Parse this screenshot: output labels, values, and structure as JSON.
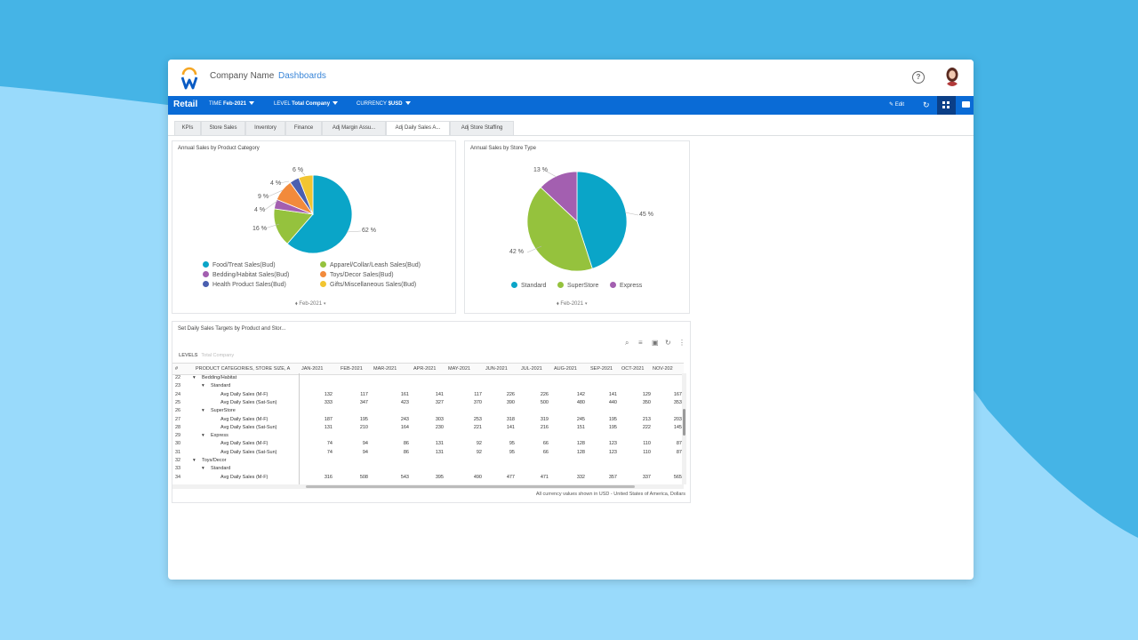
{
  "header": {
    "company_name": "Company Name",
    "dashboards_link": "Dashboards",
    "help_icon": "?"
  },
  "toolbar": {
    "brand": "Retail",
    "filters": [
      {
        "key": "TIME",
        "value": "Feb-2021"
      },
      {
        "key": "LEVEL",
        "value": "Total Company"
      },
      {
        "key": "CURRENCY",
        "value": "$USD"
      }
    ],
    "edit_label": "Edit"
  },
  "tabs": [
    "KPIs",
    "Store Sales",
    "Inventory",
    "Finance",
    "Adj Margin Assu...",
    "Adj Daily Sales A...",
    "Adj Store Staffing"
  ],
  "active_tab": 5,
  "charts": {
    "product": {
      "title": "Annual Sales by Product Category",
      "period": "Feb-2021",
      "legend_left": [
        "Food/Treat Sales(Bud)",
        "Bedding/Habitat Sales(Bud)",
        "Health Product Sales(Bud)"
      ],
      "legend_right": [
        "Apparel/Collar/Leash Sales(Bud)",
        "Toys/Decor Sales(Bud)",
        "Gifts/Miscellaneous Sales(Bud)"
      ],
      "labels": [
        "62 %",
        "16 %",
        "4 %",
        "9 %",
        "4 %",
        "6 %"
      ]
    },
    "store": {
      "title": "Annual Sales by Store Type",
      "period": "Feb-2021",
      "legend": [
        "Standard",
        "SuperStore",
        "Express"
      ],
      "labels": [
        "45 %",
        "42 %",
        "13 %"
      ]
    }
  },
  "chart_data": [
    {
      "type": "pie",
      "title": "Annual Sales by Product Category",
      "labels": [
        "Food/Treat Sales(Bud)",
        "Apparel/Collar/Leash Sales(Bud)",
        "Bedding/Habitat Sales(Bud)",
        "Toys/Decor Sales(Bud)",
        "Health Product Sales(Bud)",
        "Gifts/Miscellaneous Sales(Bud)"
      ],
      "values": [
        62,
        16,
        4,
        9,
        4,
        6
      ],
      "colors": [
        "#0aa5c8",
        "#95c23d",
        "#a35fb0",
        "#f28a3b",
        "#4a5fb0",
        "#f2c531"
      ],
      "legend": "bottom"
    },
    {
      "type": "pie",
      "title": "Annual Sales by Store Type",
      "labels": [
        "Standard",
        "SuperStore",
        "Express"
      ],
      "values": [
        45,
        42,
        13
      ],
      "colors": [
        "#0aa5c8",
        "#95c23d",
        "#a35fb0"
      ],
      "legend": "bottom"
    }
  ],
  "table": {
    "title": "Set Daily Sales Targets by Product and Stor...",
    "levels_label": "LEVELS",
    "levels_value": "Total Company",
    "columns": [
      "#",
      "PRODUCT CATEGORIES, STORE SIZE, A",
      "JAN-2021",
      "FEB-2021",
      "MAR-2021",
      "APR-2021",
      "MAY-2021",
      "JUN-2021",
      "JUL-2021",
      "AUG-2021",
      "SEP-2021",
      "OCT-2021",
      "NOV-202"
    ],
    "rows": [
      {
        "n": "22",
        "label": "Bedding/Habitat",
        "level": 0,
        "caret": true,
        "values": []
      },
      {
        "n": "23",
        "label": "Standard",
        "level": 1,
        "caret": true,
        "values": []
      },
      {
        "n": "24",
        "label": "Avg Daily Sales (M-F)",
        "level": 2,
        "values": [
          "132",
          "117",
          "161",
          "141",
          "117",
          "226",
          "226",
          "142",
          "141",
          "129",
          "167"
        ]
      },
      {
        "n": "25",
        "label": "Avg Daily Sales (Sat-Sun)",
        "level": 2,
        "values": [
          "333",
          "347",
          "423",
          "327",
          "370",
          "390",
          "500",
          "480",
          "440",
          "350",
          "353"
        ]
      },
      {
        "n": "26",
        "label": "SuperStore",
        "level": 1,
        "caret": true,
        "values": []
      },
      {
        "n": "27",
        "label": "Avg Daily Sales (M-F)",
        "level": 2,
        "values": [
          "187",
          "195",
          "243",
          "303",
          "253",
          "318",
          "319",
          "245",
          "195",
          "213",
          "203"
        ]
      },
      {
        "n": "28",
        "label": "Avg Daily Sales (Sat-Sun)",
        "level": 2,
        "values": [
          "131",
          "210",
          "164",
          "230",
          "221",
          "141",
          "216",
          "151",
          "195",
          "222",
          "145"
        ]
      },
      {
        "n": "29",
        "label": "Express",
        "level": 1,
        "caret": true,
        "values": []
      },
      {
        "n": "30",
        "label": "Avg Daily Sales (M-F)",
        "level": 2,
        "values": [
          "74",
          "94",
          "86",
          "131",
          "92",
          "95",
          "66",
          "128",
          "123",
          "110",
          "87"
        ]
      },
      {
        "n": "31",
        "label": "Avg Daily Sales (Sat-Sun)",
        "level": 2,
        "values": [
          "74",
          "94",
          "86",
          "131",
          "92",
          "95",
          "66",
          "128",
          "123",
          "110",
          "87"
        ]
      },
      {
        "n": "32",
        "label": "Toys/Decor",
        "level": 0,
        "caret": true,
        "values": []
      },
      {
        "n": "33",
        "label": "Standard",
        "level": 1,
        "caret": true,
        "values": []
      },
      {
        "n": "34",
        "label": "Avg Daily Sales (M-F)",
        "level": 2,
        "values": [
          "316",
          "508",
          "543",
          "395",
          "490",
          "477",
          "471",
          "332",
          "357",
          "337",
          "565"
        ]
      }
    ],
    "footer_note": "All currency values shown in USD - United States of America, Dollars"
  }
}
